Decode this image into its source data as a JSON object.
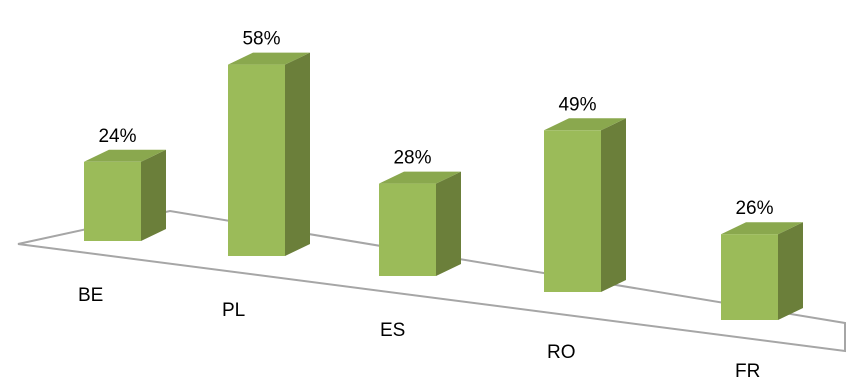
{
  "chart_data": {
    "type": "bar",
    "style": "3d-perspective",
    "categories": [
      "BE",
      "PL",
      "ES",
      "RO",
      "FR"
    ],
    "values": [
      24,
      58,
      28,
      49,
      26
    ],
    "value_labels": [
      "24%",
      "58%",
      "28%",
      "49%",
      "26%"
    ],
    "unit": "%",
    "title": "",
    "xlabel": "",
    "ylabel": "",
    "grid": false,
    "legend": "none",
    "colors": {
      "bar_front": "#9BBB59",
      "bar_side": "#6B7F3A",
      "bar_top": "#8AA84E",
      "floor_line": "#A6A6A6"
    }
  }
}
